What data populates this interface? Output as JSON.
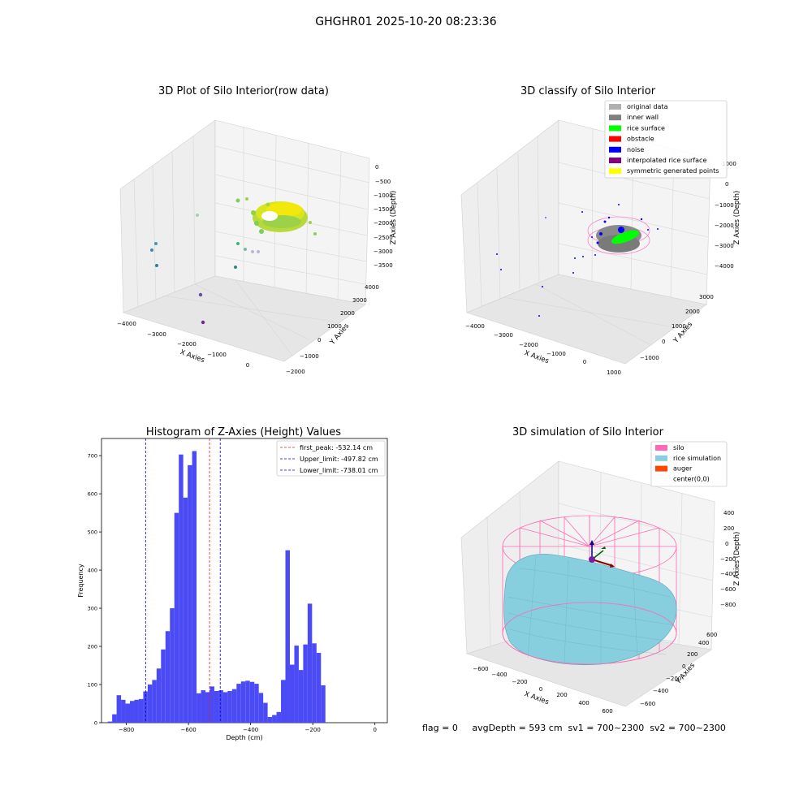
{
  "suptitle": "GHGHR01 2025-10-20 08:23:36",
  "status_line": "flag = 0     avgDepth = 593 cm  sv1 = 700~2300  sv2 = 700~2300",
  "colors": {
    "hist_bar": "#4b4bf5",
    "first_peak": "#e02020",
    "limit_line": "#0000cc",
    "silo_wire": "#ff69b4",
    "rice_sim": "#87cedf",
    "auger": "#ff4500",
    "pane_bg": "#f2f2f2",
    "grid": "#d9d9d9"
  },
  "raw_plot": {
    "title": "3D Plot of Silo Interior(row data)",
    "xlabel": "X Axies",
    "ylabel": "Y Axies",
    "zlabel": "Z Axies (Depth)",
    "xticks": [
      "−4000",
      "−3000",
      "−2000",
      "−1000",
      "0"
    ],
    "yticks": [
      "−2000",
      "−1000",
      "0",
      "1000",
      "2000",
      "3000",
      "4000"
    ],
    "zticks": [
      "0",
      "−500",
      "−1000",
      "−1500",
      "−2000",
      "−2500",
      "−3000",
      "−3500"
    ]
  },
  "classify_plot": {
    "title": "3D classify of Silo Interior",
    "xlabel": "X Axies",
    "ylabel": "Y Axies",
    "zlabel": "Z Axies (Depth)",
    "xticks": [
      "−4000",
      "−3000",
      "−2000",
      "−1000",
      "0",
      "1000"
    ],
    "yticks": [
      "−1000",
      "0",
      "1000",
      "2000",
      "3000"
    ],
    "zticks": [
      "1000",
      "0",
      "−1000",
      "−2000",
      "−3000",
      "−4000"
    ],
    "legend": [
      {
        "label": "original data",
        "color": "#b0b0b0"
      },
      {
        "label": "inner wall",
        "color": "#808080"
      },
      {
        "label": "rice surface",
        "color": "#00ff00"
      },
      {
        "label": "obstacle",
        "color": "#ff0000"
      },
      {
        "label": "noise",
        "color": "#0000ff"
      },
      {
        "label": "interpolated rice surface",
        "color": "#800080"
      },
      {
        "label": "symmetric generated points",
        "color": "#ffff00"
      }
    ]
  },
  "sim_plot": {
    "title": "3D simulation of Silo Interior",
    "xlabel": "X Axies",
    "ylabel": "Y Axies",
    "zlabel": "Z Axies (Depth)",
    "xticks": [
      "−600",
      "−400",
      "−200",
      "0",
      "200",
      "400",
      "600"
    ],
    "yticks": [
      "−600",
      "−400",
      "−200",
      "0",
      "200",
      "400",
      "600"
    ],
    "zticks": [
      "400",
      "200",
      "0",
      "−200",
      "−400",
      "−600",
      "−800"
    ],
    "legend": [
      {
        "label": "silo",
        "color": "#ff69b4"
      },
      {
        "label": "rice simulation",
        "color": "#87cedf"
      },
      {
        "label": "auger",
        "color": "#ff4500"
      },
      {
        "label": "center(0,0)",
        "color": "none"
      }
    ]
  },
  "chart_data": {
    "type": "bar",
    "title": "Histogram of Z-Axies (Height) Values",
    "xlabel": "Depth (cm)",
    "ylabel": "Frequency",
    "xlim": [
      -880,
      40
    ],
    "ylim": [
      0,
      745
    ],
    "bin_start": -860,
    "bin_width": 14.3,
    "values": [
      3,
      22,
      72,
      60,
      50,
      57,
      60,
      62,
      82,
      100,
      112,
      142,
      192,
      240,
      300,
      550,
      703,
      590,
      675,
      712,
      77,
      85,
      80,
      95,
      83,
      85,
      80,
      83,
      88,
      102,
      108,
      110,
      107,
      102,
      78,
      52,
      15,
      20,
      28,
      112,
      452,
      152,
      202,
      138,
      205,
      312,
      208,
      183,
      98
    ],
    "xticks": [
      -800,
      -600,
      -400,
      -200,
      0
    ],
    "xtick_labels": [
      "−800",
      "−600",
      "−400",
      "−200",
      "0"
    ],
    "yticks": [
      0,
      100,
      200,
      300,
      400,
      500,
      600,
      700
    ],
    "lines": [
      {
        "name": "first_peak",
        "label": "first_peak: -532.14 cm",
        "x": -532.14,
        "color": "#e02020"
      },
      {
        "name": "upper_limit",
        "label": "Upper_limit: -497.82 cm",
        "x": -497.82,
        "color": "#0000cc"
      },
      {
        "name": "lower_limit",
        "label": "Lower_limit: -738.01 cm",
        "x": -738.01,
        "color": "#0000cc"
      }
    ],
    "grid": false,
    "legend_position": "top-right"
  }
}
